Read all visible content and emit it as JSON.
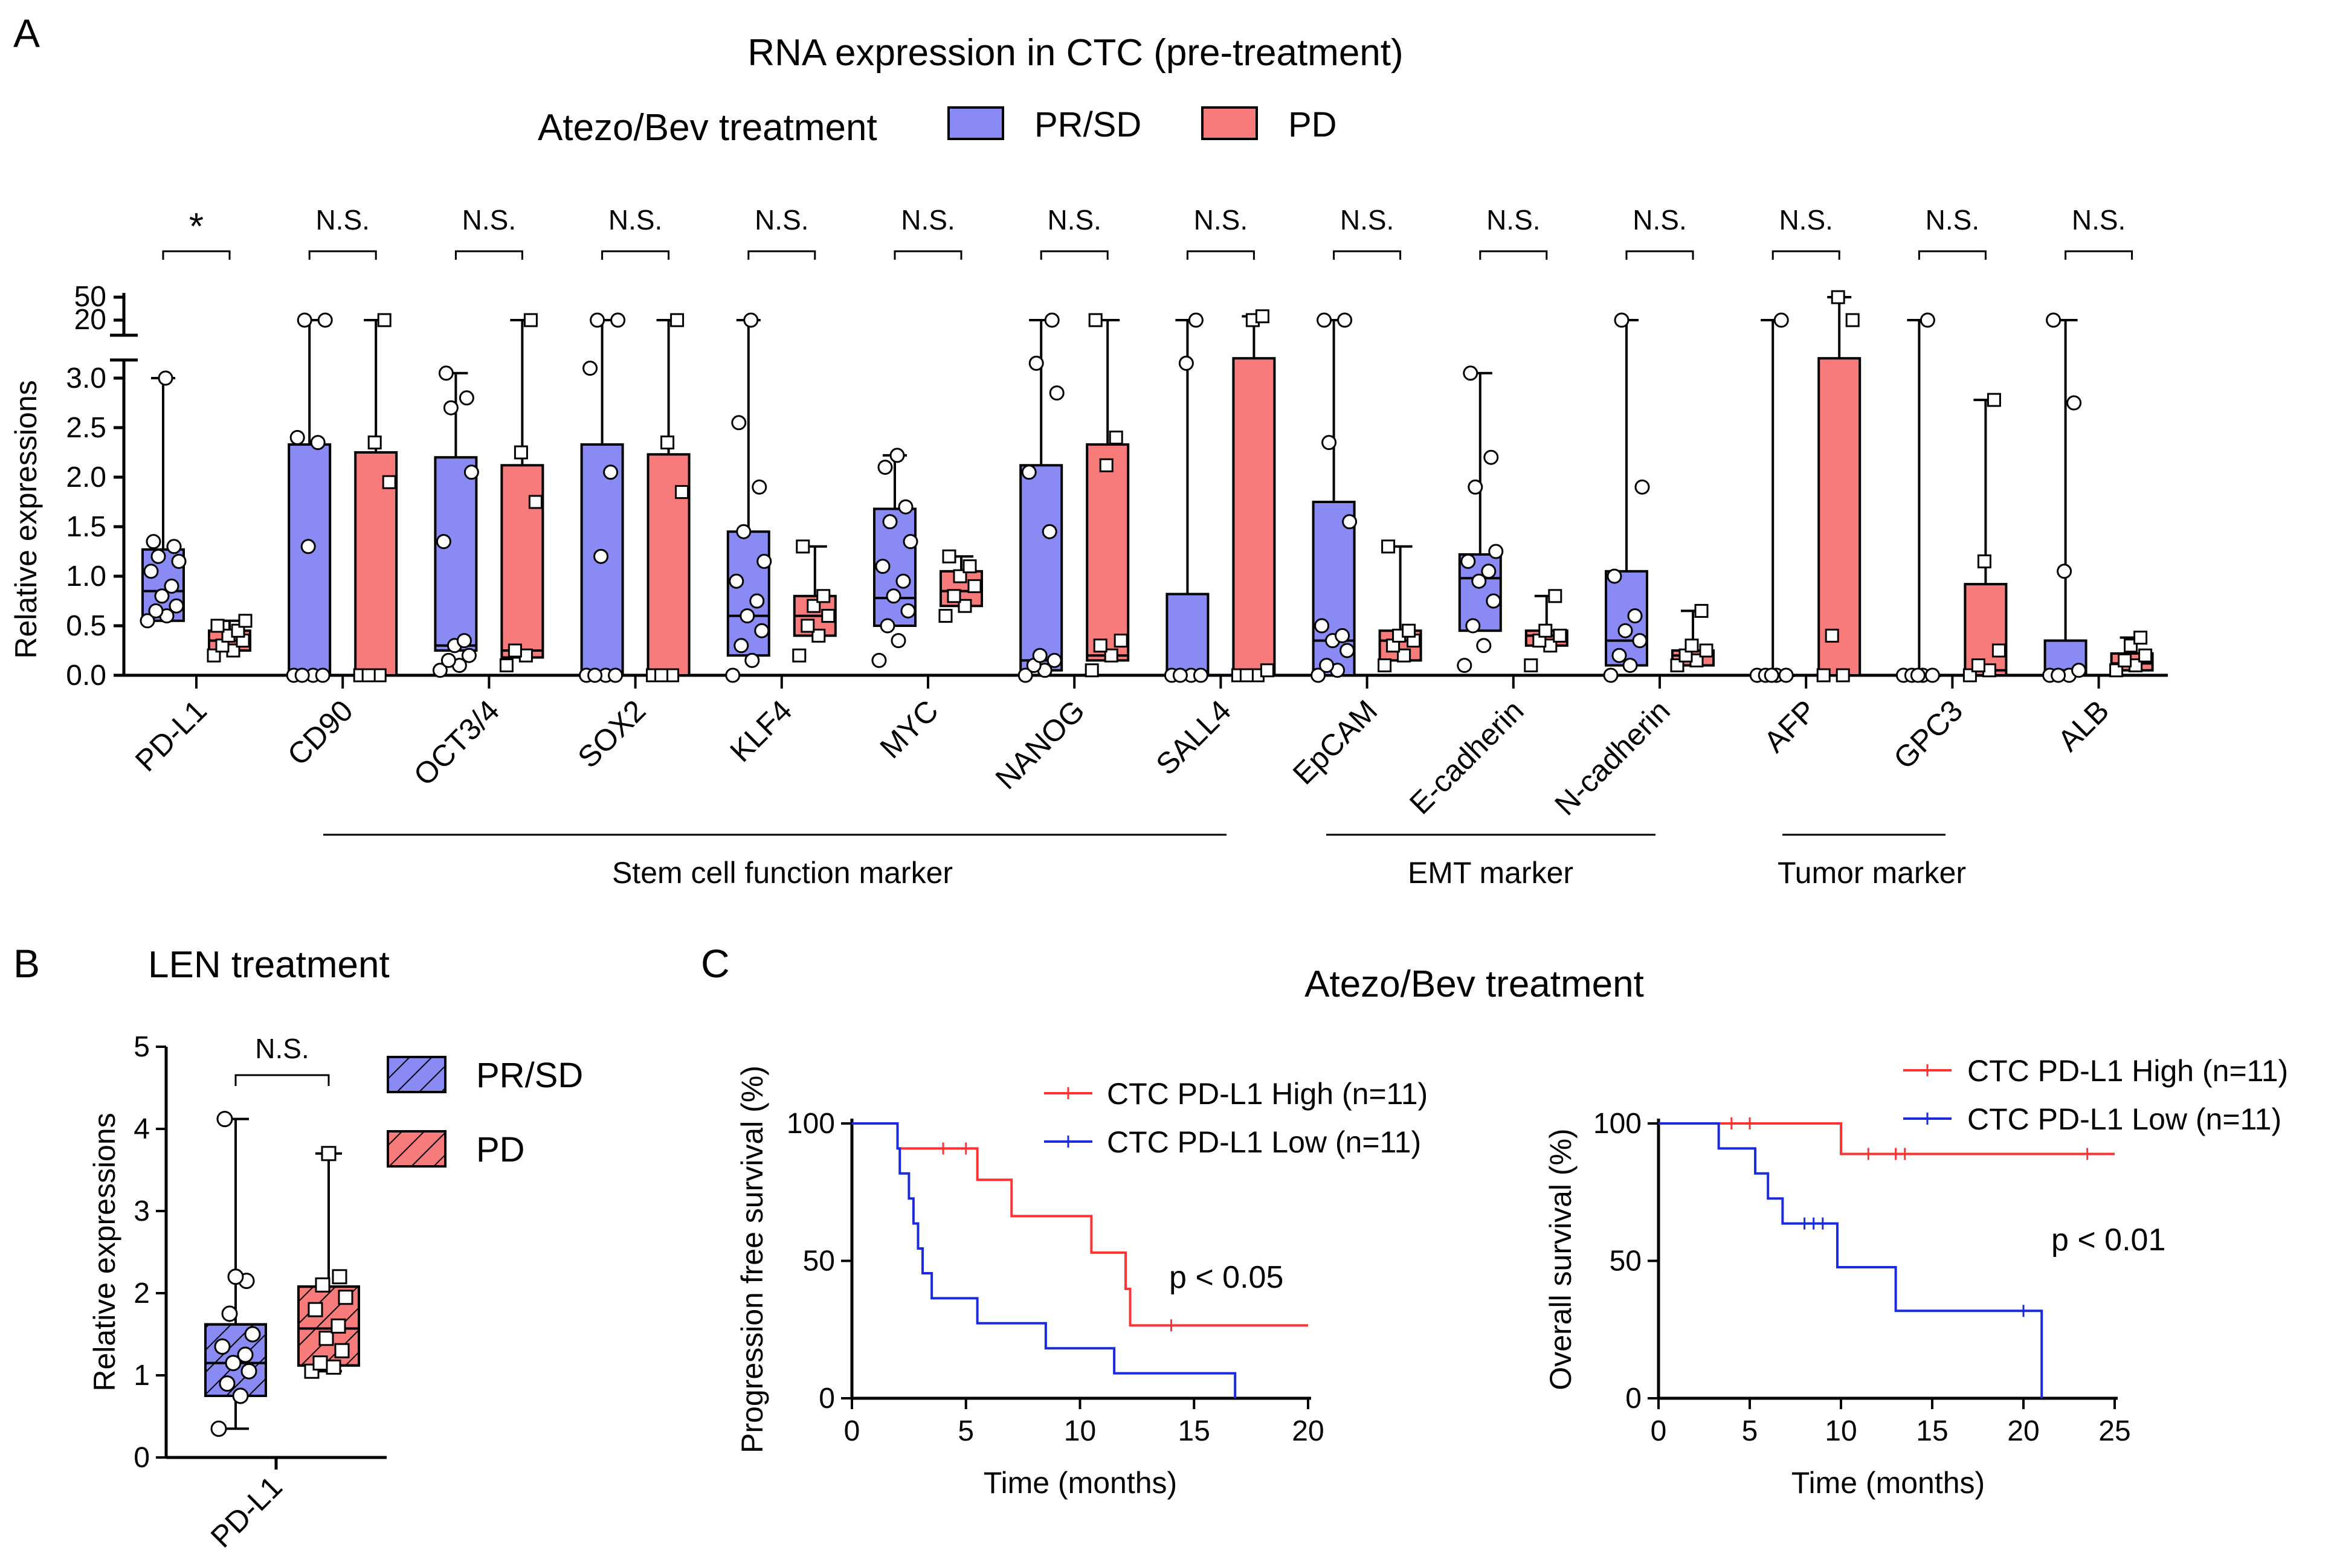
{
  "colors": {
    "pr_sd": "#8a8af5",
    "pd": "#f77b7b",
    "km_high": "#ff3333",
    "km_low": "#1a2bdd",
    "axis": "#000000"
  },
  "panel_a": {
    "letter": "A",
    "title": "RNA expression in CTC (pre-treatment)",
    "legend_title": "Atezo/Bev treatment",
    "legend_items": [
      "PR/SD",
      "PD"
    ],
    "ylabel": "Relative expressions",
    "y_ticks": [
      "0.0",
      "0.5",
      "1.0",
      "1.5",
      "2.0",
      "2.5",
      "3.0"
    ],
    "y_break_ticks": [
      "20",
      "50"
    ],
    "group_labels": [
      "Stem cell function marker",
      "EMT marker",
      "Tumor marker"
    ]
  },
  "panel_b": {
    "letter": "B",
    "title": "LEN treatment",
    "ylabel": "Relative expressions",
    "y_ticks": [
      "0",
      "1",
      "2",
      "3",
      "4",
      "5"
    ],
    "category": "PD-L1",
    "significance": "N.S.",
    "legend_items": [
      "PR/SD",
      "PD"
    ]
  },
  "panel_c": {
    "letter": "C",
    "title": "Atezo/Bev treatment",
    "left": {
      "ylabel": "Progression free survival (%)",
      "xlabel": "Time (months)",
      "x_ticks": [
        "0",
        "5",
        "10",
        "15",
        "20"
      ],
      "y_ticks": [
        "0",
        "50",
        "100"
      ],
      "legend": [
        "CTC PD-L1 High (n=11)",
        "CTC PD-L1 Low  (n=11)"
      ],
      "pvalue": "p < 0.05"
    },
    "right": {
      "ylabel": "Overall survival (%)",
      "xlabel": "Time (months)",
      "x_ticks": [
        "0",
        "5",
        "10",
        "15",
        "20",
        "25"
      ],
      "y_ticks": [
        "0",
        "50",
        "100"
      ],
      "legend": [
        "CTC PD-L1 High (n=11)",
        "CTC PD-L1 Low  (n=11)"
      ],
      "pvalue": "p < 0.01"
    }
  },
  "chart_data": [
    {
      "type": "box",
      "panel": "A",
      "title": "RNA expression in CTC (pre-treatment)",
      "ylabel": "Relative expressions",
      "ylim": [
        0,
        3.2
      ],
      "ylim_break": [
        20,
        50
      ],
      "series": [
        "PR/SD",
        "PD"
      ],
      "categories": [
        "PD-L1",
        "CD90",
        "OCT3/4",
        "SOX2",
        "KLF4",
        "MYC",
        "NANOG",
        "SALL4",
        "EpCAM",
        "E-cadherin",
        "N-cadherin",
        "AFP",
        "GPC3",
        "ALB"
      ],
      "significance": [
        "*",
        "N.S.",
        "N.S.",
        "N.S.",
        "N.S.",
        "N.S.",
        "N.S.",
        "N.S.",
        "N.S.",
        "N.S.",
        "N.S.",
        "N.S.",
        "N.S.",
        "N.S."
      ],
      "boxes": [
        {
          "cat": "PD-L1",
          "pr": {
            "min": 0.55,
            "q1": 0.55,
            "med": 0.85,
            "q3": 1.27,
            "max": 3.0,
            "pts": [
              0.55,
              0.6,
              0.65,
              0.7,
              0.8,
              0.9,
              1.05,
              1.15,
              1.2,
              1.3,
              1.35,
              3.0
            ]
          },
          "pd": {
            "min": 0.2,
            "q1": 0.25,
            "med": 0.35,
            "q3": 0.45,
            "max": 0.55,
            "pts": [
              0.2,
              0.25,
              0.3,
              0.35,
              0.4,
              0.45,
              0.5,
              0.55
            ]
          }
        },
        {
          "cat": "CD90",
          "pr": {
            "min": 0.0,
            "q1": 0.0,
            "med": 0.0,
            "q3": 2.33,
            "max": 20,
            "pts": [
              0,
              0,
              0,
              0,
              1.3,
              2.35,
              2.4,
              20,
              20
            ]
          },
          "pd": {
            "min": 0.0,
            "q1": 0.0,
            "med": 0.0,
            "q3": 2.25,
            "max": 20,
            "pts": [
              0,
              0,
              0,
              1.95,
              2.35,
              20
            ]
          }
        },
        {
          "cat": "OCT3/4",
          "pr": {
            "min": 0.0,
            "q1": 0.25,
            "med": 0.3,
            "q3": 2.2,
            "max": 3.05,
            "pts": [
              0.05,
              0.1,
              0.15,
              0.2,
              0.3,
              0.35,
              1.35,
              2.05,
              2.7,
              2.8,
              3.05
            ]
          },
          "pd": {
            "min": 0.05,
            "q1": 0.18,
            "med": 0.25,
            "q3": 2.12,
            "max": 20,
            "pts": [
              0.1,
              0.2,
              0.25,
              1.75,
              2.25,
              20
            ]
          }
        },
        {
          "cat": "SOX2",
          "pr": {
            "min": 0.0,
            "q1": 0.0,
            "med": 0.0,
            "q3": 2.33,
            "max": 20,
            "pts": [
              0,
              0,
              0,
              0,
              1.2,
              2.05,
              3.1,
              20,
              20
            ]
          },
          "pd": {
            "min": 0.0,
            "q1": 0.0,
            "med": 0.0,
            "q3": 2.23,
            "max": 20,
            "pts": [
              0,
              0,
              0,
              1.85,
              2.35,
              20
            ]
          }
        },
        {
          "cat": "KLF4",
          "pr": {
            "min": 0.0,
            "q1": 0.2,
            "med": 0.6,
            "q3": 1.45,
            "max": 20,
            "pts": [
              0.0,
              0.15,
              0.3,
              0.45,
              0.6,
              0.75,
              0.95,
              1.15,
              1.45,
              1.9,
              2.55,
              20
            ]
          },
          "pd": {
            "min": 0.15,
            "q1": 0.4,
            "med": 0.6,
            "q3": 0.8,
            "max": 1.3,
            "pts": [
              0.2,
              0.4,
              0.5,
              0.6,
              0.7,
              0.8,
              1.3
            ]
          }
        },
        {
          "cat": "MYC",
          "pr": {
            "min": 0.15,
            "q1": 0.5,
            "med": 0.78,
            "q3": 1.68,
            "max": 2.22,
            "pts": [
              0.15,
              0.35,
              0.5,
              0.65,
              0.8,
              0.95,
              1.1,
              1.35,
              1.55,
              1.7,
              2.1,
              2.22
            ]
          },
          "pd": {
            "min": 0.6,
            "q1": 0.7,
            "med": 0.85,
            "q3": 1.05,
            "max": 1.2,
            "pts": [
              0.6,
              0.7,
              0.8,
              0.9,
              1.0,
              1.1,
              1.2
            ]
          }
        },
        {
          "cat": "NANOG",
          "pr": {
            "min": 0.0,
            "q1": 0.05,
            "med": 0.15,
            "q3": 2.12,
            "max": 20,
            "pts": [
              0,
              0.05,
              0.1,
              0.15,
              0.2,
              1.45,
              2.05,
              2.85,
              3.15,
              20
            ]
          },
          "pd": {
            "min": 0.0,
            "q1": 0.15,
            "med": 0.2,
            "q3": 2.33,
            "max": 20,
            "pts": [
              0.05,
              0.2,
              0.3,
              0.35,
              2.12,
              2.4,
              20
            ]
          }
        },
        {
          "cat": "SALL4",
          "pr": {
            "min": 0.0,
            "q1": 0.0,
            "med": 0.0,
            "q3": 0.82,
            "max": 20,
            "pts": [
              0,
              0,
              0,
              0,
              3.15,
              20
            ]
          },
          "pd": {
            "min": 0.0,
            "q1": 0.0,
            "med": 0.0,
            "q3": 20,
            "max": 25,
            "pts": [
              0,
              0,
              0,
              0.05,
              20,
              25
            ]
          }
        },
        {
          "cat": "EpCAM",
          "pr": {
            "min": 0.0,
            "q1": 0.0,
            "med": 0.35,
            "q3": 1.75,
            "max": 20,
            "pts": [
              0,
              0.05,
              0.1,
              0.25,
              0.35,
              0.4,
              0.5,
              1.55,
              2.35,
              20,
              20
            ]
          },
          "pd": {
            "min": 0.05,
            "q1": 0.15,
            "med": 0.35,
            "q3": 0.45,
            "max": 1.3,
            "pts": [
              0.1,
              0.2,
              0.3,
              0.35,
              0.4,
              0.45,
              1.3
            ]
          }
        },
        {
          "cat": "E-cadherin",
          "pr": {
            "min": 0.05,
            "q1": 0.45,
            "med": 0.98,
            "q3": 1.22,
            "max": 3.05,
            "pts": [
              0.1,
              0.3,
              0.5,
              0.75,
              0.95,
              1.05,
              1.15,
              1.25,
              1.9,
              2.2,
              3.05
            ]
          },
          "pd": {
            "min": 0.05,
            "q1": 0.3,
            "med": 0.4,
            "q3": 0.45,
            "max": 0.8,
            "pts": [
              0.1,
              0.3,
              0.35,
              0.4,
              0.45,
              0.8
            ]
          }
        },
        {
          "cat": "N-cadherin",
          "pr": {
            "min": 0.0,
            "q1": 0.1,
            "med": 0.35,
            "q3": 1.05,
            "max": 20,
            "pts": [
              0,
              0.1,
              0.2,
              0.35,
              0.45,
              0.6,
              1.0,
              1.9,
              20
            ]
          },
          "pd": {
            "min": 0.05,
            "q1": 0.1,
            "med": 0.2,
            "q3": 0.25,
            "max": 0.65,
            "pts": [
              0.1,
              0.15,
              0.2,
              0.25,
              0.3,
              0.65
            ]
          }
        },
        {
          "cat": "AFP",
          "pr": {
            "min": 0.0,
            "q1": 0.0,
            "med": 0.0,
            "q3": 0.0,
            "max": 20,
            "pts": [
              0,
              0,
              0,
              0,
              0,
              20
            ]
          },
          "pd": {
            "min": 0.0,
            "q1": 0.0,
            "med": 0.0,
            "q3": 20,
            "max": 50,
            "pts": [
              0,
              0,
              0.4,
              20,
              50
            ]
          }
        },
        {
          "cat": "GPC3",
          "pr": {
            "min": 0.0,
            "q1": 0.0,
            "med": 0.0,
            "q3": 0.0,
            "max": 20,
            "pts": [
              0,
              0,
              0,
              0,
              0,
              20
            ]
          },
          "pd": {
            "min": 0.0,
            "q1": 0.0,
            "med": 0.05,
            "q3": 0.92,
            "max": 2.78,
            "pts": [
              0,
              0.05,
              0.1,
              0.25,
              1.15,
              2.78
            ]
          }
        },
        {
          "cat": "ALB",
          "pr": {
            "min": 0.0,
            "q1": 0.0,
            "med": 0.05,
            "q3": 0.35,
            "max": 20,
            "pts": [
              0,
              0,
              0,
              0.05,
              1.05,
              2.75,
              20
            ]
          },
          "pd": {
            "min": 0.0,
            "q1": 0.05,
            "med": 0.12,
            "q3": 0.22,
            "max": 0.38,
            "pts": [
              0.05,
              0.1,
              0.15,
              0.2,
              0.3,
              0.38
            ]
          }
        }
      ]
    },
    {
      "type": "box",
      "panel": "B",
      "title": "LEN treatment",
      "ylabel": "Relative expressions",
      "ylim": [
        0,
        5
      ],
      "categories": [
        "PD-L1"
      ],
      "series": [
        "PR/SD",
        "PD"
      ],
      "significance": "N.S.",
      "boxes": {
        "pr": {
          "min": 0.35,
          "q1": 0.75,
          "med": 1.15,
          "q3": 1.62,
          "max": 4.12,
          "pts": [
            0.35,
            0.75,
            0.9,
            1.05,
            1.15,
            1.25,
            1.35,
            1.5,
            1.75,
            2.15,
            2.2,
            4.12
          ]
        },
        "pd": {
          "min": 1.05,
          "q1": 1.12,
          "med": 1.57,
          "q3": 2.08,
          "max": 3.7,
          "pts": [
            1.05,
            1.1,
            1.15,
            1.3,
            1.45,
            1.6,
            1.8,
            1.95,
            2.1,
            2.2,
            3.7
          ]
        }
      }
    },
    {
      "type": "line",
      "subtype": "kaplan-meier",
      "panel": "C-left",
      "title": "Atezo/Bev treatment",
      "xlabel": "Time (months)",
      "ylabel": "Progression free survival (%)",
      "xlim": [
        0,
        20
      ],
      "ylim": [
        0,
        100
      ],
      "series": [
        {
          "name": "CTC PD-L1 High (n=11)",
          "steps": [
            [
              0,
              100
            ],
            [
              2,
              90.9
            ],
            [
              5.5,
              79.5
            ],
            [
              7,
              66.3
            ],
            [
              10.5,
              53
            ],
            [
              12,
              39.8
            ],
            [
              12.2,
              26.5
            ],
            [
              20,
              26.5
            ]
          ],
          "censors": [
            [
              4,
              90.9
            ],
            [
              5,
              90.9
            ],
            [
              14,
              26.5
            ]
          ]
        },
        {
          "name": "CTC PD-L1 Low  (n=11)",
          "steps": [
            [
              0,
              100
            ],
            [
              2,
              90.9
            ],
            [
              2.1,
              81.8
            ],
            [
              2.5,
              72.7
            ],
            [
              2.7,
              63.6
            ],
            [
              2.9,
              54.5
            ],
            [
              3.1,
              45.5
            ],
            [
              3.5,
              36.4
            ],
            [
              5.5,
              27.3
            ],
            [
              8.5,
              18.2
            ],
            [
              11.5,
              9.1
            ],
            [
              16.8,
              0
            ]
          ],
          "censors": []
        }
      ],
      "pvalue": "p < 0.05"
    },
    {
      "type": "line",
      "subtype": "kaplan-meier",
      "panel": "C-right",
      "title": "Atezo/Bev treatment",
      "xlabel": "Time (months)",
      "ylabel": "Overall survival (%)",
      "xlim": [
        0,
        25
      ],
      "ylim": [
        0,
        100
      ],
      "series": [
        {
          "name": "CTC PD-L1 High (n=11)",
          "steps": [
            [
              0,
              100
            ],
            [
              10,
              88.9
            ],
            [
              25,
              88.9
            ]
          ],
          "censors": [
            [
              4,
              100
            ],
            [
              5,
              100
            ],
            [
              11.5,
              88.9
            ],
            [
              13,
              88.9
            ],
            [
              13.5,
              88.9
            ],
            [
              23.5,
              88.9
            ]
          ]
        },
        {
          "name": "CTC PD-L1 Low  (n=11)",
          "steps": [
            [
              0,
              100
            ],
            [
              3.3,
              90.9
            ],
            [
              5.3,
              81.8
            ],
            [
              6,
              72.7
            ],
            [
              6.8,
              63.6
            ],
            [
              9.8,
              47.7
            ],
            [
              13,
              31.8
            ],
            [
              21,
              0
            ]
          ],
          "censors": [
            [
              8,
              63.6
            ],
            [
              8.5,
              63.6
            ],
            [
              9,
              63.6
            ],
            [
              20,
              31.8
            ]
          ]
        }
      ],
      "pvalue": "p < 0.01"
    }
  ]
}
